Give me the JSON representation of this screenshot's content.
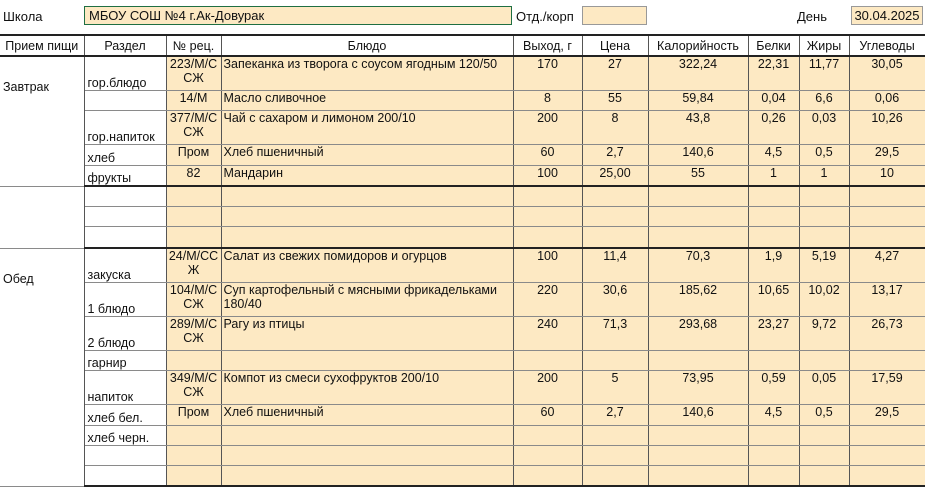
{
  "header": {
    "school_label": "Школа",
    "school_name": "МБОУ СОШ №4 г.Ак-Довурак",
    "dept_label": "Отд./корп",
    "dept_value": "",
    "day_label": "День",
    "date": "30.04.2025"
  },
  "columns": [
    "Прием пищи",
    "Раздел",
    "№ рец.",
    "Блюдо",
    "Выход, г",
    "Цена",
    "Калорийность",
    "Белки",
    "Жиры",
    "Углеводы"
  ],
  "breakfast": {
    "meal": "Завтрак",
    "rows": [
      {
        "section": "гор.блюдо",
        "recipe": "223/М/С СЖ",
        "dish": "Запеканка из творога с соусом ягодным 120/50",
        "yield": "170",
        "price": "27",
        "kcal": "322,24",
        "protein": "22,31",
        "fat": "11,77",
        "carbs": "30,05"
      },
      {
        "section": "",
        "recipe": "14/М",
        "dish": "Масло сливочное",
        "yield": "8",
        "price": "55",
        "kcal": "59,84",
        "protein": "0,04",
        "fat": "6,6",
        "carbs": "0,06"
      },
      {
        "section": "гор.напиток",
        "recipe": "377/М/С СЖ",
        "dish": "Чай с сахаром и лимоном 200/10",
        "yield": "200",
        "price": "8",
        "kcal": "43,8",
        "protein": "0,26",
        "fat": "0,03",
        "carbs": "10,26"
      },
      {
        "section": "хлеб",
        "recipe": "Пром",
        "dish": "Хлеб пшеничный",
        "yield": "60",
        "price": "2,7",
        "kcal": "140,6",
        "protein": "4,5",
        "fat": "0,5",
        "carbs": "29,5"
      },
      {
        "section": "фрукты",
        "recipe": "82",
        "dish": "Мандарин",
        "yield": "100",
        "price": "25,00",
        "kcal": "55",
        "protein": "1",
        "fat": "1",
        "carbs": "10"
      }
    ]
  },
  "extra": {
    "rows": [
      {
        "section": "",
        "recipe": "",
        "dish": "",
        "yield": "",
        "price": "",
        "kcal": "",
        "protein": "",
        "fat": "",
        "carbs": ""
      },
      {
        "section": "",
        "recipe": "",
        "dish": "",
        "yield": "",
        "price": "",
        "kcal": "",
        "protein": "",
        "fat": "",
        "carbs": ""
      },
      {
        "section": "",
        "recipe": "",
        "dish": "",
        "yield": "",
        "price": "",
        "kcal": "",
        "protein": "",
        "fat": "",
        "carbs": ""
      }
    ]
  },
  "lunch": {
    "meal": "Обед",
    "rows": [
      {
        "section": "закуска",
        "recipe": "24/М/СС Ж",
        "dish": "Салат из свежих помидоров и огурцов",
        "yield": "100",
        "price": "11,4",
        "kcal": "70,3",
        "protein": "1,9",
        "fat": "5,19",
        "carbs": "4,27"
      },
      {
        "section": "1 блюдо",
        "recipe": "104/М/С СЖ",
        "dish": "Суп картофельный с мясными фрикадельками 180/40",
        "yield": "220",
        "price": "30,6",
        "kcal": "185,62",
        "protein": "10,65",
        "fat": "10,02",
        "carbs": "13,17"
      },
      {
        "section": "2 блюдо",
        "recipe": "289/М/С СЖ",
        "dish": "Рагу из птицы",
        "yield": "240",
        "price": "71,3",
        "kcal": "293,68",
        "protein": "23,27",
        "fat": "9,72",
        "carbs": "26,73"
      },
      {
        "section": "гарнир",
        "recipe": "",
        "dish": "",
        "yield": "",
        "price": "",
        "kcal": "",
        "protein": "",
        "fat": "",
        "carbs": ""
      },
      {
        "section": "напиток",
        "recipe": "349/М/С СЖ",
        "dish": "Компот из смеси сухофруктов 200/10",
        "yield": "200",
        "price": "5",
        "kcal": "73,95",
        "protein": "0,59",
        "fat": "0,05",
        "carbs": "17,59"
      },
      {
        "section": "хлеб бел.",
        "recipe": "Пром",
        "dish": "Хлеб пшеничный",
        "yield": "60",
        "price": "2,7",
        "kcal": "140,6",
        "protein": "4,5",
        "fat": "0,5",
        "carbs": "29,5"
      },
      {
        "section": "хлеб черн.",
        "recipe": "",
        "dish": "",
        "yield": "",
        "price": "",
        "kcal": "",
        "protein": "",
        "fat": "",
        "carbs": ""
      },
      {
        "section": "",
        "recipe": "",
        "dish": "",
        "yield": "",
        "price": "",
        "kcal": "",
        "protein": "",
        "fat": "",
        "carbs": ""
      },
      {
        "section": "",
        "recipe": "",
        "dish": "",
        "yield": "",
        "price": "",
        "kcal": "",
        "protein": "",
        "fat": "",
        "carbs": ""
      }
    ]
  }
}
